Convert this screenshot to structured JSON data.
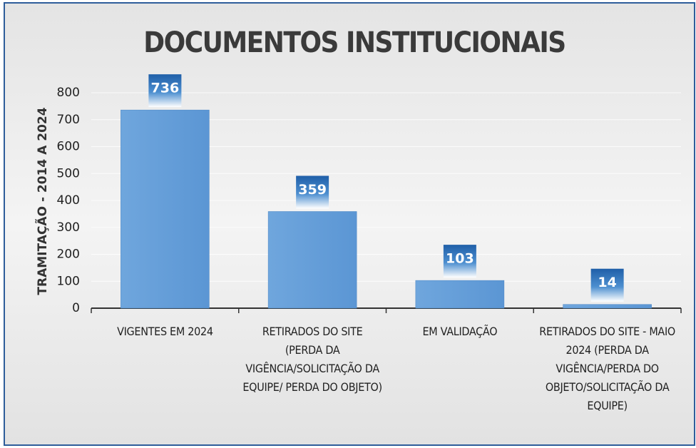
{
  "chart_data": {
    "type": "bar",
    "title": "DOCUMENTOS INSTITUCIONAIS",
    "y_label": "TRAMITAÇÃO - 2014 A 2024",
    "categories": [
      "VIGENTES EM 2024",
      "RETIRADOS DO SITE (PERDA DA VIGÊNCIA/SOLICITAÇÃO DA EQUIPE/ PERDA DO OBJETO)",
      "EM VALIDAÇÃO",
      "RETIRADOS DO SITE - MAIO 2024 (PERDA DA VIGÊNCIA/PERDA DO OBJETO/SOLICITAÇÃO DA EQUIPE)"
    ],
    "values": [
      736,
      359,
      103,
      14
    ],
    "color": "#5f9bd8",
    "ylim": [
      0,
      800
    ],
    "yticks": [
      0,
      100,
      200,
      300,
      400,
      500,
      600,
      700,
      800
    ],
    "grid": true
  }
}
